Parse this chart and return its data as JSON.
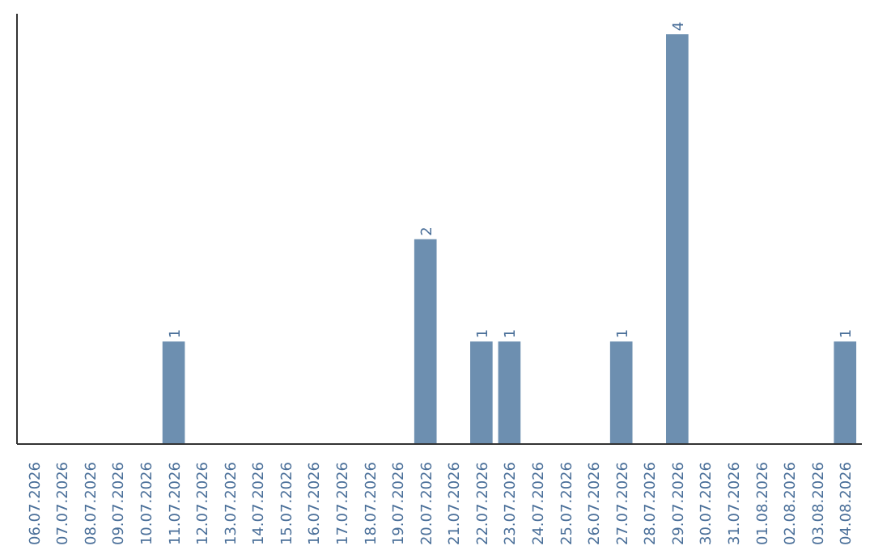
{
  "chart_data": {
    "type": "bar",
    "categories": [
      "06.07.2026",
      "07.07.2026",
      "08.07.2026",
      "09.07.2026",
      "10.07.2026",
      "11.07.2026",
      "12.07.2026",
      "13.07.2026",
      "14.07.2026",
      "15.07.2026",
      "16.07.2026",
      "17.07.2026",
      "18.07.2026",
      "19.07.2026",
      "20.07.2026",
      "21.07.2026",
      "22.07.2026",
      "23.07.2026",
      "24.07.2026",
      "25.07.2026",
      "26.07.2026",
      "27.07.2026",
      "28.07.2026",
      "29.07.2026",
      "30.07.2026",
      "31.07.2026",
      "01.08.2026",
      "02.08.2026",
      "03.08.2026",
      "04.08.2026"
    ],
    "values": [
      0,
      0,
      0,
      0,
      0,
      1,
      0,
      0,
      0,
      0,
      0,
      0,
      0,
      0,
      2,
      0,
      1,
      1,
      0,
      0,
      0,
      1,
      0,
      4,
      0,
      0,
      0,
      0,
      0,
      1
    ],
    "value_labels": [
      null,
      null,
      null,
      null,
      null,
      "1",
      null,
      null,
      null,
      null,
      null,
      null,
      null,
      null,
      "2",
      null,
      "1",
      "1",
      null,
      null,
      null,
      "1",
      null,
      "4",
      null,
      null,
      null,
      null,
      null,
      "1"
    ],
    "color": "#6d8fb0",
    "grid": false,
    "tick_labels": "x"
  }
}
